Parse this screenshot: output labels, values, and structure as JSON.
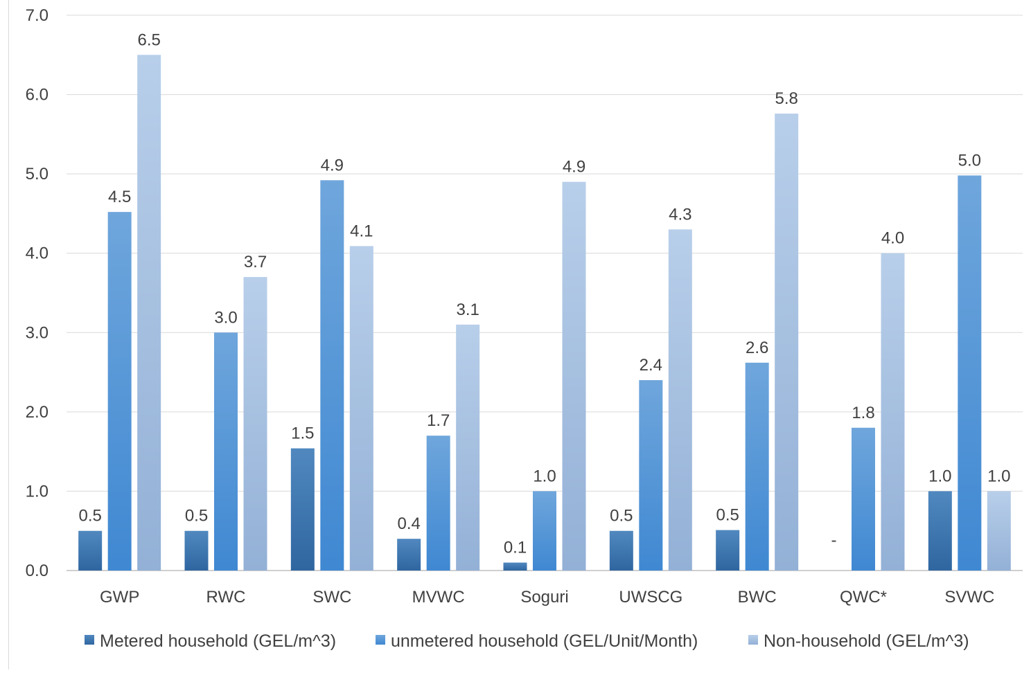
{
  "chart_data": {
    "type": "bar",
    "title": "",
    "xlabel": "",
    "ylabel": "",
    "ylim": [
      0,
      7
    ],
    "yticks": [
      "0.0",
      "1.0",
      "2.0",
      "3.0",
      "4.0",
      "5.0",
      "6.0",
      "7.0"
    ],
    "grid": true,
    "legend_position": "bottom",
    "categories": [
      "GWP",
      "RWC",
      "SWC",
      "MVWC",
      "Soguri",
      "UWSCG",
      "BWC",
      "QWC*",
      "SVWC"
    ],
    "series": [
      {
        "name": "Metered household (GEL/m^3)",
        "color": "#4a7fb4",
        "values": [
          0.5,
          0.5,
          1.54,
          0.4,
          0.1,
          0.5,
          0.51,
          null,
          1.0
        ],
        "labels": [
          "0.5",
          "0.5",
          "1.5",
          "0.4",
          "0.1",
          "0.5",
          "0.5",
          "-",
          "1.0"
        ]
      },
      {
        "name": "unmetered household (GEL/Unit/Month)",
        "color": "#5a9ad8",
        "values": [
          4.52,
          3.0,
          4.92,
          1.7,
          1.0,
          2.4,
          2.62,
          1.8,
          4.98
        ],
        "labels": [
          "4.5",
          "3.0",
          "4.9",
          "1.7",
          "1.0",
          "2.4",
          "2.6",
          "1.8",
          "5.0"
        ]
      },
      {
        "name": "Non-household (GEL/m^3)",
        "color": "#a9c3e3",
        "values": [
          6.5,
          3.7,
          4.09,
          3.1,
          4.9,
          4.3,
          5.76,
          4.0,
          1.0
        ],
        "labels": [
          "6.5",
          "3.7",
          "4.1",
          "3.1",
          "4.9",
          "4.3",
          "5.8",
          "4.0",
          "1.0"
        ]
      }
    ]
  }
}
